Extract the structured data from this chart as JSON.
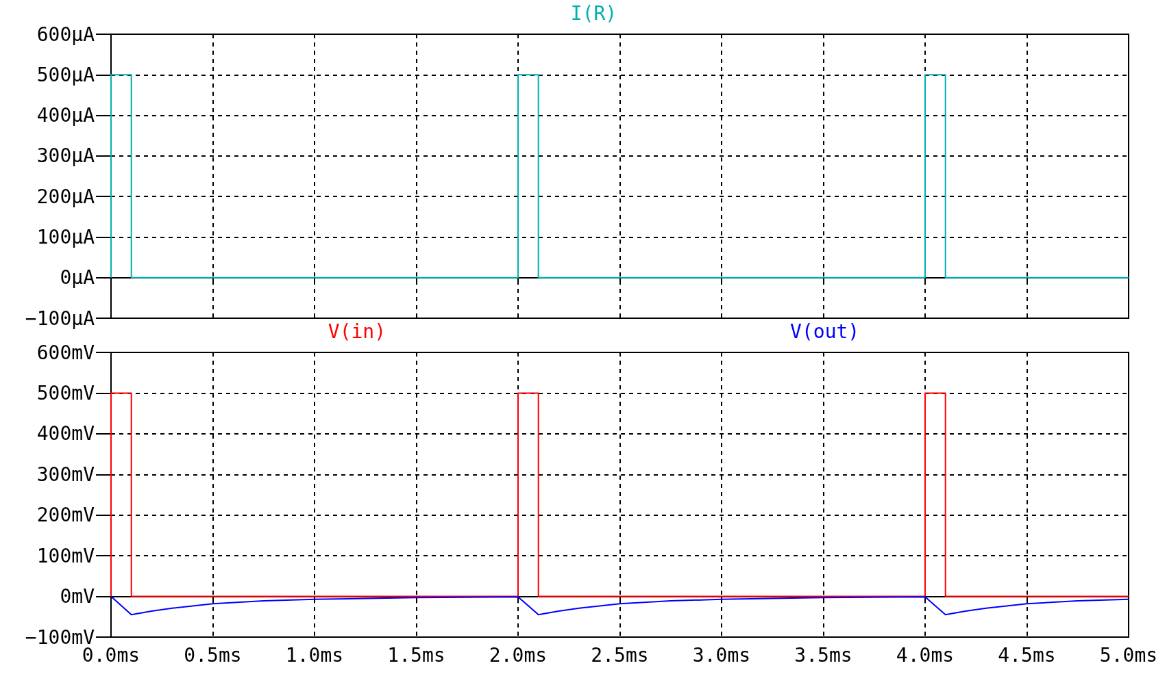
{
  "chart_data": [
    {
      "type": "line",
      "legend": "top",
      "grid": true,
      "marker": "none",
      "tick_labels": "y",
      "series": [
        {
          "name": "I(R)",
          "color": "#00b0b0",
          "x": [
            0,
            0,
            0.1,
            0.1,
            2,
            2,
            2.1,
            2.1,
            4,
            4,
            4.1,
            4.1,
            5
          ],
          "values": [
            0,
            500,
            500,
            0,
            0,
            500,
            500,
            0,
            0,
            500,
            500,
            0,
            0
          ]
        }
      ],
      "xlim": [
        0,
        5
      ],
      "xticks": [
        {
          "value": 0,
          "label": null
        },
        {
          "value": 0.5,
          "label": null
        },
        {
          "value": 1,
          "label": null
        },
        {
          "value": 1.5,
          "label": null
        },
        {
          "value": 2,
          "label": null
        },
        {
          "value": 2.5,
          "label": null
        },
        {
          "value": 3,
          "label": null
        },
        {
          "value": 3.5,
          "label": null
        },
        {
          "value": 4,
          "label": null
        },
        {
          "value": 4.5,
          "label": null
        },
        {
          "value": 5,
          "label": null
        }
      ],
      "ylim": [
        -100,
        600
      ],
      "yticks": [
        {
          "value": -100,
          "label": "−100µA"
        },
        {
          "value": 0,
          "label": "0µA"
        },
        {
          "value": 100,
          "label": "100µA"
        },
        {
          "value": 200,
          "label": "200µA"
        },
        {
          "value": 300,
          "label": "300µA"
        },
        {
          "value": 400,
          "label": "400µA"
        },
        {
          "value": 500,
          "label": "500µA"
        },
        {
          "value": 600,
          "label": "600µA"
        }
      ]
    },
    {
      "type": "line",
      "legend": "top",
      "grid": true,
      "marker": "none",
      "series": [
        {
          "name": "V(in)",
          "color": "#ff0000",
          "x": [
            0,
            0,
            0.1,
            0.1,
            2,
            2,
            2.1,
            2.1,
            4,
            4,
            4.1,
            4.1,
            5
          ],
          "values": [
            0,
            500,
            500,
            0,
            0,
            500,
            500,
            0,
            0,
            500,
            500,
            0,
            0
          ]
        },
        {
          "name": "V(out)",
          "color": "#0000ff",
          "x": [
            0,
            0.1,
            0.2,
            0.3,
            0.5,
            0.75,
            1,
            1.5,
            2,
            2.1,
            2.2,
            2.3,
            2.5,
            2.75,
            3,
            3.5,
            4,
            4.1,
            4.2,
            4.3,
            4.5,
            4.75,
            5
          ],
          "values": [
            0,
            -45,
            -36,
            -29,
            -18,
            -11,
            -7,
            -3,
            -1,
            -45,
            -36,
            -29,
            -18,
            -11,
            -7,
            -3,
            -1,
            -45,
            -36,
            -29,
            -18,
            -11,
            -7
          ]
        }
      ],
      "xlim": [
        0,
        5
      ],
      "xticks": [
        {
          "value": 0,
          "label": "0.0ms"
        },
        {
          "value": 0.5,
          "label": "0.5ms"
        },
        {
          "value": 1,
          "label": "1.0ms"
        },
        {
          "value": 1.5,
          "label": "1.5ms"
        },
        {
          "value": 2,
          "label": "2.0ms"
        },
        {
          "value": 2.5,
          "label": "2.5ms"
        },
        {
          "value": 3,
          "label": "3.0ms"
        },
        {
          "value": 3.5,
          "label": "3.5ms"
        },
        {
          "value": 4,
          "label": "4.0ms"
        },
        {
          "value": 4.5,
          "label": "4.5ms"
        },
        {
          "value": 5,
          "label": "5.0ms"
        }
      ],
      "ylim": [
        -100,
        600
      ],
      "yticks": [
        {
          "value": -100,
          "label": "−100mV"
        },
        {
          "value": 0,
          "label": "0mV"
        },
        {
          "value": 100,
          "label": "100mV"
        },
        {
          "value": 200,
          "label": "200mV"
        },
        {
          "value": 300,
          "label": "300mV"
        },
        {
          "value": 400,
          "label": "400mV"
        },
        {
          "value": 500,
          "label": "500mV"
        },
        {
          "value": 600,
          "label": "600mV"
        }
      ]
    }
  ]
}
